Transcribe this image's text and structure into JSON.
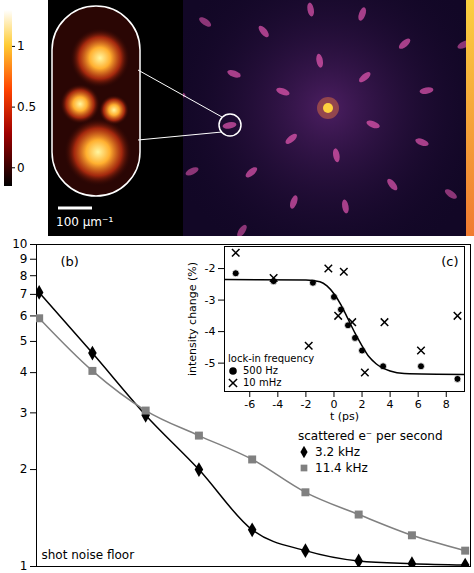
{
  "chart_data": [
    {
      "type": "image",
      "colorbar": {
        "range": [
          -0.15,
          1.3
        ],
        "ticks": [
          0,
          0.5,
          1
        ]
      },
      "scale_bar": "100 µm⁻¹"
    },
    {
      "type": "line",
      "panel_label": "(b)",
      "log": "y",
      "xlim": [
        -0.05,
        8.1
      ],
      "ylim": [
        1,
        10
      ],
      "yticks": [
        1,
        2,
        3,
        4,
        5,
        6,
        7,
        8,
        9,
        10
      ],
      "tick_labels": "y",
      "annotation": "shot noise floor",
      "legend_title": "scattered e⁻ per second",
      "legend": "right",
      "x": [
        0,
        1,
        2,
        3,
        4,
        5,
        6,
        7,
        8
      ],
      "series": [
        {
          "name": "3.2 kHz",
          "color": "black",
          "marker": "diamond",
          "values": [
            7.1,
            4.6,
            2.95,
            2.0,
            1.3,
            1.12,
            1.04,
            1.02,
            1.01
          ]
        },
        {
          "name": "11.4 kHz",
          "color": "gray",
          "marker": "square",
          "values": [
            5.9,
            4.05,
            3.05,
            2.55,
            2.15,
            1.7,
            1.45,
            1.25,
            1.12
          ]
        }
      ]
    },
    {
      "type": "scatter",
      "panel_label": "(c)",
      "xlabel": "t (ps)",
      "ylabel": "intensity change (%)",
      "xlim": [
        -7.8,
        9.3
      ],
      "xticks": [
        -6,
        -4,
        -2,
        0,
        2,
        4,
        6,
        8
      ],
      "ylim": [
        -5.9,
        -1.3
      ],
      "yticks": [
        -5,
        -4,
        -3,
        -2
      ],
      "legend_title": "lock-in frequency",
      "legend": "lower left",
      "series": [
        {
          "name": "500 Hz",
          "color": "black",
          "marker": "circle",
          "x": [
            -7.0,
            -4.3,
            -1.5,
            0,
            0.5,
            1,
            1.5,
            2,
            3.5,
            6.2,
            8.8
          ],
          "values": [
            -2.15,
            -2.4,
            -2.45,
            -2.9,
            -3.3,
            -3.8,
            -4.2,
            -4.6,
            -5.1,
            -5.1,
            -5.5
          ]
        },
        {
          "name": "10 mHz",
          "color": "black",
          "marker": "times",
          "x": [
            -7.0,
            -4.3,
            -1.8,
            -0.4,
            0.3,
            0.7,
            1.3,
            2.2,
            3.6,
            6.2,
            8.8
          ],
          "values": [
            -1.5,
            -2.3,
            -4.45,
            -2.0,
            -3.5,
            -2.1,
            -3.7,
            -5.3,
            -3.7,
            -4.6,
            -3.5
          ]
        },
        {
          "type": "line",
          "color": "black",
          "x": [
            -7.8,
            -2,
            -1,
            -0.5,
            0,
            0.5,
            1,
            1.5,
            2,
            2.5,
            3,
            4,
            5,
            9.3
          ],
          "values": [
            -2.35,
            -2.36,
            -2.42,
            -2.55,
            -2.8,
            -3.15,
            -3.6,
            -4.05,
            -4.45,
            -4.8,
            -5.02,
            -5.25,
            -5.33,
            -5.36
          ]
        }
      ]
    }
  ]
}
